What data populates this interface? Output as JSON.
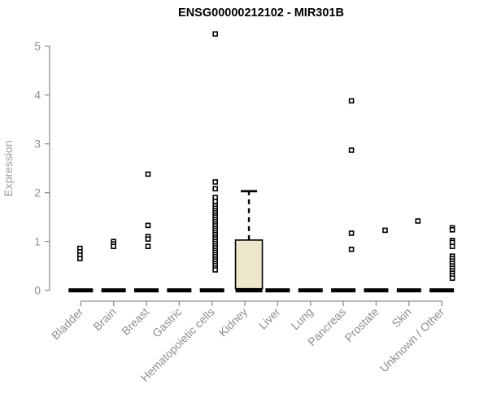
{
  "title": "ENSG00000212102 - MIR301B",
  "y_axis": {
    "label": "Expression"
  },
  "colors": {
    "title": "#000000",
    "axis": "#8f8f8f",
    "tick_label": "#8e8e8e",
    "y_axis_label": "#9e9e9e",
    "marker_stroke": "#000000",
    "marker_fill": "#ffffff",
    "median_dash": "#000000",
    "box_fill": "#ebe6cc",
    "box_stroke": "#000000"
  },
  "chart_data": {
    "type": "boxplot-scatter",
    "title": "ENSG00000212102 - MIR301B",
    "xlabel": "",
    "ylabel": "Expression",
    "ylim": [
      0,
      5.4
    ],
    "yticks": [
      0,
      1,
      2,
      3,
      4,
      5
    ],
    "grid": false,
    "legend": "none",
    "categories": [
      "Bladder",
      "Brain",
      "Breast",
      "Gastric",
      "Hematopoietic cells",
      "Kidney",
      "Liver",
      "Lung",
      "Pancreas",
      "Prostate",
      "Skin",
      "Unknown / Other"
    ],
    "series": [
      {
        "category": "Bladder",
        "median": 0,
        "x_offset": -1,
        "points": [
          0.86,
          0.79,
          0.72,
          0.65
        ]
      },
      {
        "category": "Brain",
        "median": 0,
        "x_offset": 0,
        "points": [
          1.0,
          0.95,
          0.9
        ]
      },
      {
        "category": "Breast",
        "median": 0,
        "x_offset": 2,
        "points": [
          2.38,
          1.33,
          1.1,
          1.05,
          0.9
        ]
      },
      {
        "category": "Gastric",
        "median": 0,
        "x_offset": 0,
        "points": []
      },
      {
        "category": "Hematopoietic cells",
        "median": 0,
        "x_offset": 4,
        "points": [
          5.25,
          2.22,
          2.08,
          1.9,
          1.82,
          1.73,
          1.68,
          1.63,
          1.59,
          1.54,
          1.5,
          1.45,
          1.41,
          1.36,
          1.32,
          1.27,
          1.23,
          1.18,
          1.14,
          1.09,
          1.05,
          1.0,
          0.96,
          0.91,
          0.87,
          0.82,
          0.78,
          0.73,
          0.69,
          0.64,
          0.6,
          0.55,
          0.51,
          0.46,
          0.42
        ]
      },
      {
        "category": "Kidney",
        "median": 0,
        "x_offset": 5,
        "points": [],
        "box": {
          "q1": 0,
          "median": 0,
          "q3": 1.03,
          "whisker_high": 2.03
        }
      },
      {
        "category": "Liver",
        "median": 0,
        "x_offset": 0,
        "points": []
      },
      {
        "category": "Lung",
        "median": 0,
        "x_offset": 0,
        "points": []
      },
      {
        "category": "Pancreas",
        "median": 0,
        "x_offset": 10,
        "points": [
          3.88,
          2.87,
          1.17,
          0.84
        ]
      },
      {
        "category": "Prostate",
        "median": 0,
        "x_offset": 11,
        "points": [
          1.23
        ]
      },
      {
        "category": "Skin",
        "median": 0,
        "x_offset": 11,
        "points": [
          1.42
        ]
      },
      {
        "category": "Unknown / Other",
        "median": 0,
        "x_offset": 13,
        "points": [
          1.28,
          1.24,
          1.02,
          0.98,
          0.9,
          0.7,
          0.65,
          0.6,
          0.55,
          0.5,
          0.45,
          0.4,
          0.35,
          0.3,
          0.25
        ]
      }
    ]
  }
}
